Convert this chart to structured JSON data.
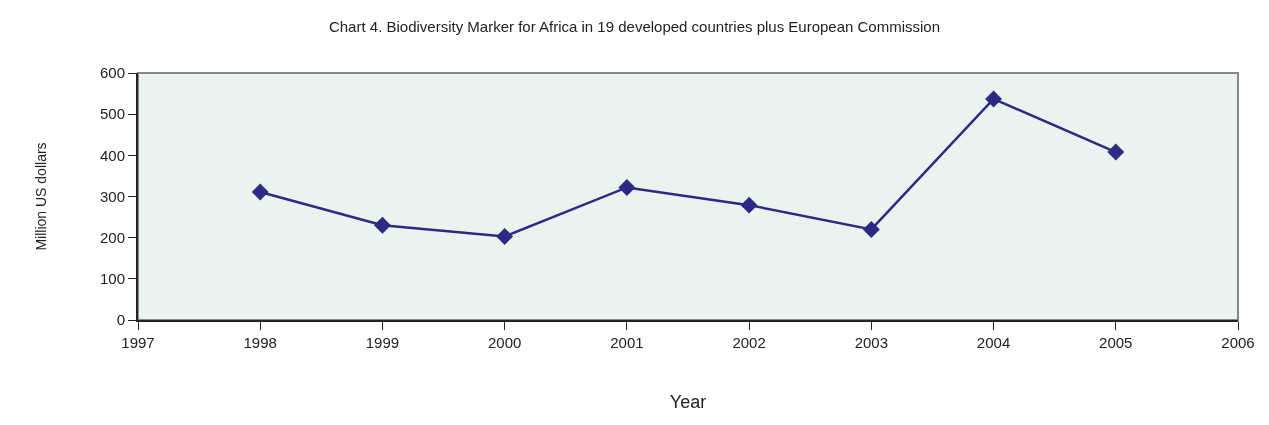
{
  "chart_data": {
    "type": "line",
    "title": "Chart 4. Biodiversity Marker for Africa in 19 developed countries plus European Commission",
    "xlabel": "Year",
    "ylabel": "Million US dollars",
    "x": [
      1998,
      1999,
      2000,
      2001,
      2002,
      2003,
      2004,
      2005
    ],
    "series": [
      {
        "color": "#2b2a84",
        "values": [
          311,
          230,
          203,
          322,
          279,
          220,
          537,
          408
        ]
      }
    ],
    "xlim": [
      1997,
      2006
    ],
    "xticks": [
      1997,
      1998,
      1999,
      2000,
      2001,
      2002,
      2003,
      2004,
      2005,
      2006
    ],
    "ylim": [
      0,
      600
    ],
    "yticks": [
      0,
      100,
      200,
      300,
      400,
      500,
      600
    ],
    "grid": false,
    "marker": "diamond",
    "line_style": "solid"
  }
}
